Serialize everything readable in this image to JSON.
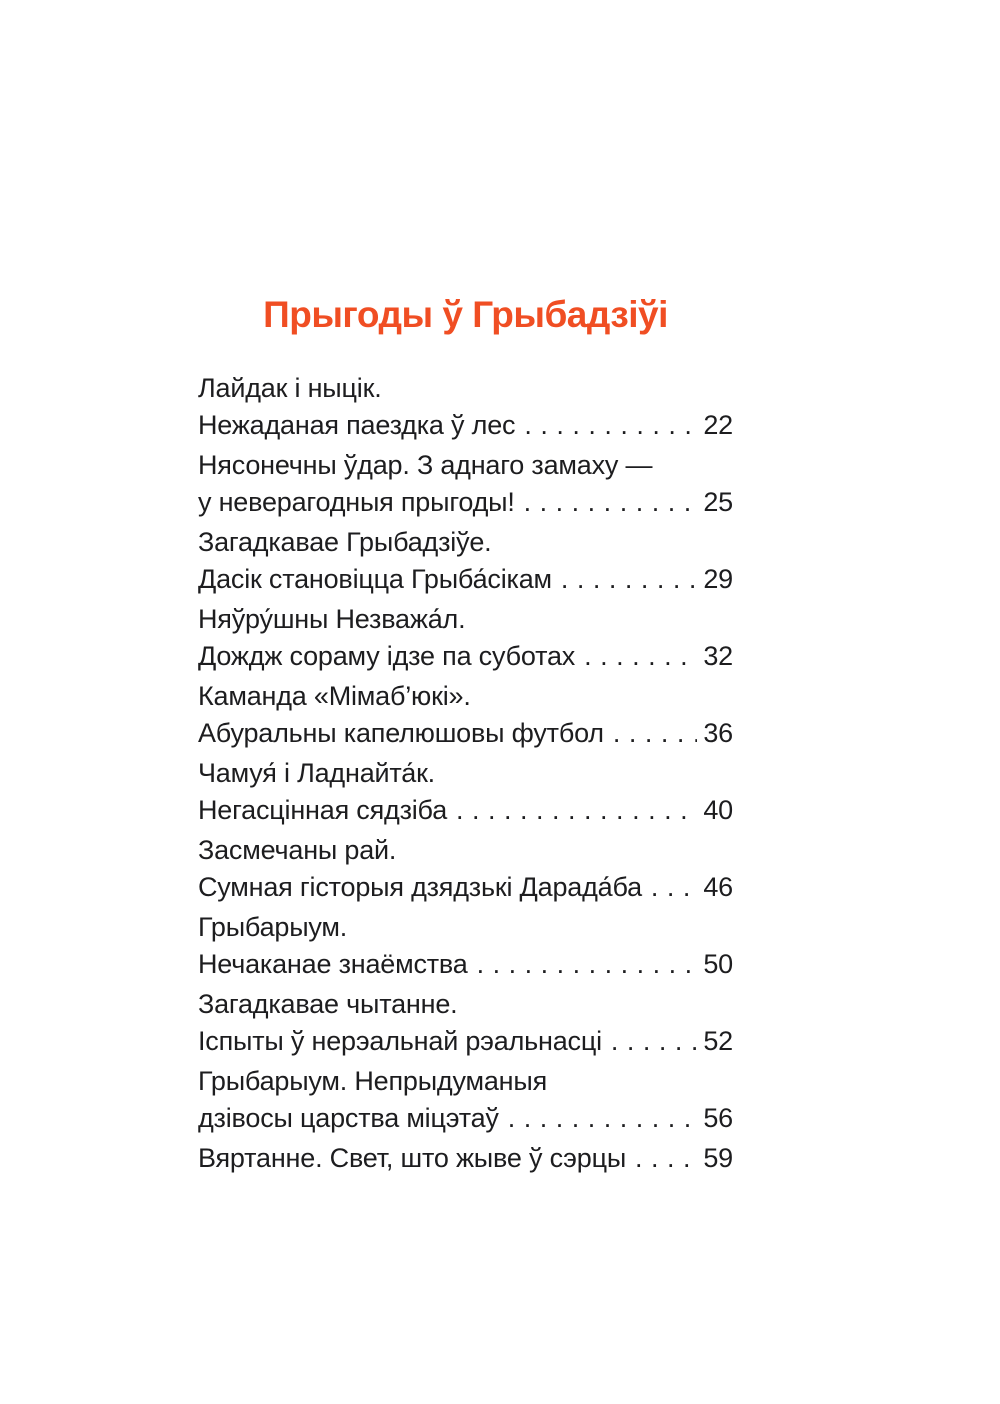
{
  "toc": {
    "title": "Прыгоды ў Грыбадзіўі",
    "accent_color": "#F04E23",
    "text_color": "#1d1d1f",
    "entries": [
      {
        "line1": "Лайдак і ныцік.",
        "line2": "Нежаданая паездка ў лес",
        "page": "22"
      },
      {
        "line1": "Нясонечны ўдар. З аднаго замаху —",
        "line2": "у неверагодныя прыгоды!",
        "page": "25"
      },
      {
        "line1": "Загадкавае Грыбадзіўе.",
        "line2": "Дасік становіцца Грыба́сікам",
        "page": "29"
      },
      {
        "line1": "Няўру́шны Незважа́л.",
        "line2": "Дождж сораму ідзе па суботах",
        "page": "32"
      },
      {
        "line1": "Каманда «Мімаб’юкі».",
        "line2": "Абуральны капелюшовы футбол",
        "page": "36"
      },
      {
        "line1": "Чамуя́ і Ладнайта́к.",
        "line2": "Негасцінная сядзіба",
        "page": "40"
      },
      {
        "line1": "Засмечаны рай.",
        "line2": "Сумная гісторыя дзядзькі Дарада́ба",
        "page": "46"
      },
      {
        "line1": "Грыбарыум.",
        "line2": "Нечаканае знаёмства",
        "page": "50"
      },
      {
        "line1": "Загадкавае чытанне.",
        "line2": "Іспыты ў нерэальнай рэальнасці",
        "page": "52"
      },
      {
        "line1": "Грыбарыум. Непрыдуманыя",
        "line2": "дзівосы царства міцэтаў",
        "page": "56"
      },
      {
        "line1": "",
        "line2": "Вяртанне. Свет, што жыве ў сэрцы",
        "page": "59"
      }
    ]
  }
}
